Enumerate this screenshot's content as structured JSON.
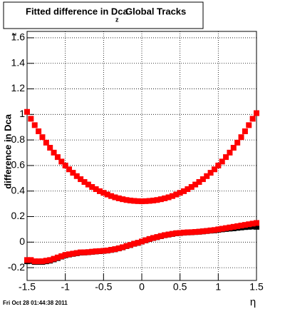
{
  "chart_data": {
    "type": "scatter",
    "title": "Fitted difference in Dca",
    "title_subscript": "z",
    "title_suffix": "Global Tracks",
    "y_label": "difference in Dca",
    "y_label_subscript": "z",
    "x_label": "η",
    "date_stamp": "Fri Oct 28 01:44:38 2011",
    "xlim": [
      -1.5,
      1.5
    ],
    "ylim": [
      -0.3,
      1.65
    ],
    "xticks": [
      -1.5,
      -1,
      -0.5,
      0,
      0.5,
      1,
      1.5
    ],
    "yticks": [
      -0.2,
      0,
      0.2,
      0.4,
      0.6,
      0.8,
      1,
      1.2,
      1.4,
      1.6
    ],
    "grid": true,
    "x": [
      -1.5,
      -1.45,
      -1.4,
      -1.35,
      -1.3,
      -1.25,
      -1.2,
      -1.15,
      -1.1,
      -1.05,
      -1,
      -0.95,
      -0.9,
      -0.85,
      -0.8,
      -0.75,
      -0.7,
      -0.65,
      -0.6,
      -0.55,
      -0.5,
      -0.45,
      -0.4,
      -0.35,
      -0.3,
      -0.25,
      -0.2,
      -0.15,
      -0.1,
      -0.05,
      0,
      0.05,
      0.1,
      0.15,
      0.2,
      0.25,
      0.3,
      0.35,
      0.4,
      0.45,
      0.5,
      0.55,
      0.6,
      0.65,
      0.7,
      0.75,
      0.8,
      0.85,
      0.9,
      0.95,
      1,
      1.05,
      1.1,
      1.15,
      1.2,
      1.25,
      1.3,
      1.35,
      1.4,
      1.45,
      1.5
    ],
    "series": [
      {
        "color": "#000000",
        "values": [
          -0.15,
          -0.148,
          -0.155,
          -0.155,
          -0.155,
          -0.15,
          -0.145,
          -0.135,
          -0.125,
          -0.113,
          -0.103,
          -0.097,
          -0.092,
          -0.087,
          -0.082,
          -0.081,
          -0.079,
          -0.076,
          -0.073,
          -0.071,
          -0.069,
          -0.066,
          -0.061,
          -0.056,
          -0.049,
          -0.041,
          -0.031,
          -0.023,
          -0.013,
          -0.006,
          0.004,
          0.014,
          0.024,
          0.032,
          0.039,
          0.047,
          0.054,
          0.059,
          0.064,
          0.069,
          0.071,
          0.074,
          0.076,
          0.077,
          0.079,
          0.081,
          0.084,
          0.087,
          0.09,
          0.092,
          0.096,
          0.1,
          0.103,
          0.106,
          0.108,
          0.112,
          0.115,
          0.118,
          0.12,
          0.122,
          0.12
        ]
      },
      {
        "color": "#ff0000",
        "values": [
          -0.14,
          -0.14,
          -0.15,
          -0.15,
          -0.15,
          -0.145,
          -0.14,
          -0.13,
          -0.12,
          -0.11,
          -0.1,
          -0.095,
          -0.09,
          -0.085,
          -0.08,
          -0.08,
          -0.078,
          -0.075,
          -0.072,
          -0.07,
          -0.068,
          -0.065,
          -0.06,
          -0.055,
          -0.048,
          -0.04,
          -0.03,
          -0.022,
          -0.012,
          -0.005,
          0.005,
          0.015,
          0.025,
          0.033,
          0.04,
          0.048,
          0.055,
          0.06,
          0.065,
          0.07,
          0.072,
          0.075,
          0.077,
          0.078,
          0.08,
          0.082,
          0.085,
          0.088,
          0.092,
          0.095,
          0.1,
          0.105,
          0.11,
          0.115,
          0.12,
          0.125,
          0.13,
          0.135,
          0.14,
          0.145,
          0.15
        ]
      },
      {
        "color": "#ff0000",
        "values": [
          1.02,
          0.966,
          0.916,
          0.868,
          0.822,
          0.779,
          0.739,
          0.701,
          0.666,
          0.631,
          0.6,
          0.57,
          0.543,
          0.517,
          0.493,
          0.471,
          0.451,
          0.432,
          0.415,
          0.399,
          0.386,
          0.373,
          0.361,
          0.351,
          0.343,
          0.336,
          0.33,
          0.326,
          0.323,
          0.321,
          0.32,
          0.321,
          0.323,
          0.326,
          0.33,
          0.336,
          0.343,
          0.351,
          0.361,
          0.373,
          0.386,
          0.399,
          0.415,
          0.432,
          0.451,
          0.471,
          0.493,
          0.517,
          0.543,
          0.57,
          0.6,
          0.631,
          0.666,
          0.701,
          0.739,
          0.779,
          0.822,
          0.868,
          0.916,
          0.966,
          1.01
        ]
      }
    ]
  }
}
